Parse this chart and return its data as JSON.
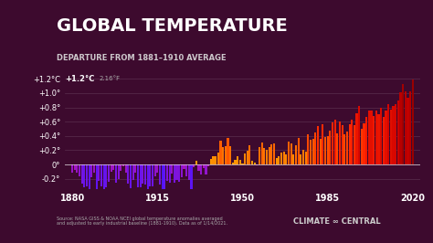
{
  "title": "GLOBAL TEMPERATURE",
  "subtitle": "DEPARTURE FROM 1881–1910 AVERAGE",
  "source_text": "Source: NASA GISS & NOAA NCEI global temperature anomalies averaged\nand adjusted to early industrial baseline (1881-1910). Data as of 1/14/2021.",
  "logo_text": "CLIMATE ∞ CENTRAL",
  "bg_color": "#3d0a2e",
  "ylabel_color": "#ffffff",
  "title_color": "#ffffff",
  "subtitle_color": "#dddddd",
  "annotation_value": "+1.2°C",
  "annotation_small": "2.16°F",
  "years": [
    1880,
    1881,
    1882,
    1883,
    1884,
    1885,
    1886,
    1887,
    1888,
    1889,
    1890,
    1891,
    1892,
    1893,
    1894,
    1895,
    1896,
    1897,
    1898,
    1899,
    1900,
    1901,
    1902,
    1903,
    1904,
    1905,
    1906,
    1907,
    1908,
    1909,
    1910,
    1911,
    1912,
    1913,
    1914,
    1915,
    1916,
    1917,
    1918,
    1919,
    1920,
    1921,
    1922,
    1923,
    1924,
    1925,
    1926,
    1927,
    1928,
    1929,
    1930,
    1931,
    1932,
    1933,
    1934,
    1935,
    1936,
    1937,
    1938,
    1939,
    1940,
    1941,
    1942,
    1943,
    1944,
    1945,
    1946,
    1947,
    1948,
    1949,
    1950,
    1951,
    1952,
    1953,
    1954,
    1955,
    1956,
    1957,
    1958,
    1959,
    1960,
    1961,
    1962,
    1963,
    1964,
    1965,
    1966,
    1967,
    1968,
    1969,
    1970,
    1971,
    1972,
    1973,
    1974,
    1975,
    1976,
    1977,
    1978,
    1979,
    1980,
    1981,
    1982,
    1983,
    1984,
    1985,
    1986,
    1987,
    1988,
    1989,
    1990,
    1991,
    1992,
    1993,
    1994,
    1995,
    1996,
    1997,
    1998,
    1999,
    2000,
    2001,
    2002,
    2003,
    2004,
    2005,
    2006,
    2007,
    2008,
    2009,
    2010,
    2011,
    2012,
    2013,
    2014,
    2015,
    2016,
    2017,
    2018,
    2019,
    2020
  ],
  "anomalies": [
    -0.12,
    -0.07,
    -0.11,
    -0.16,
    -0.27,
    -0.32,
    -0.31,
    -0.35,
    -0.18,
    -0.11,
    -0.36,
    -0.23,
    -0.3,
    -0.35,
    -0.32,
    -0.24,
    -0.1,
    -0.08,
    -0.26,
    -0.2,
    -0.09,
    -0.03,
    -0.11,
    -0.27,
    -0.33,
    -0.22,
    -0.11,
    -0.32,
    -0.32,
    -0.27,
    -0.28,
    -0.36,
    -0.3,
    -0.3,
    -0.16,
    -0.12,
    -0.28,
    -0.43,
    -0.36,
    -0.23,
    -0.26,
    -0.13,
    -0.25,
    -0.22,
    -0.24,
    -0.18,
    -0.06,
    -0.17,
    -0.22,
    -0.37,
    -0.04,
    0.05,
    -0.09,
    -0.14,
    -0.05,
    -0.14,
    -0.03,
    0.08,
    0.11,
    0.11,
    0.17,
    0.33,
    0.24,
    0.26,
    0.37,
    0.26,
    0.03,
    0.07,
    0.11,
    0.07,
    0.01,
    0.15,
    0.19,
    0.27,
    0.05,
    0.03,
    -0.01,
    0.25,
    0.31,
    0.23,
    0.2,
    0.25,
    0.28,
    0.3,
    0.09,
    0.11,
    0.17,
    0.18,
    0.14,
    0.32,
    0.29,
    0.14,
    0.27,
    0.37,
    0.14,
    0.21,
    0.18,
    0.42,
    0.35,
    0.36,
    0.45,
    0.54,
    0.36,
    0.56,
    0.39,
    0.4,
    0.47,
    0.59,
    0.63,
    0.44,
    0.6,
    0.55,
    0.42,
    0.46,
    0.56,
    0.63,
    0.55,
    0.72,
    0.82,
    0.5,
    0.58,
    0.67,
    0.76,
    0.76,
    0.68,
    0.76,
    0.71,
    0.8,
    0.67,
    0.76,
    0.85,
    0.77,
    0.82,
    0.84,
    0.9,
    1.01,
    1.13,
    1.02,
    0.94,
    1.02,
    1.19
  ],
  "xticks": [
    1880,
    1915,
    1950,
    1985,
    2020
  ],
  "yticks": [
    -0.2,
    0.0,
    0.2,
    0.4,
    0.6,
    0.8,
    1.0,
    1.2
  ],
  "ylim": [
    -0.35,
    1.35
  ],
  "xlim": [
    1877,
    2023
  ]
}
